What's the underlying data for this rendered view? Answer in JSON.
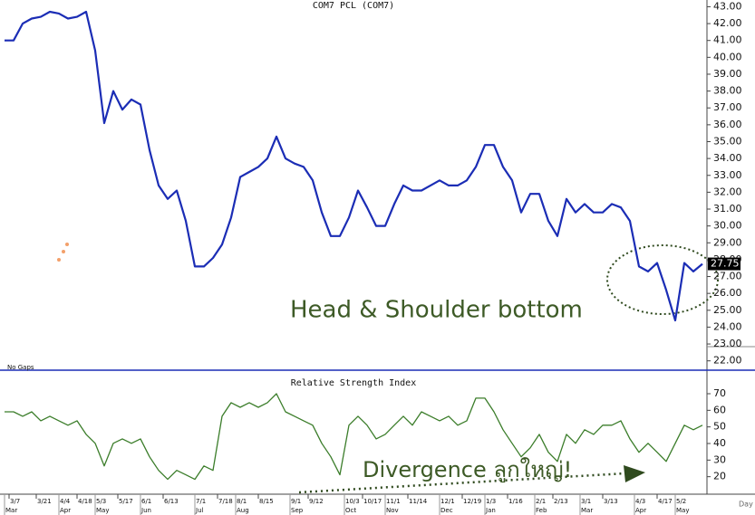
{
  "chart_data": [
    {
      "type": "line",
      "title": "COM7 PCL (COM7)",
      "note": "No Gaps",
      "annotation": "Head & Shoulder bottom",
      "xlim": [
        -0.5,
        77.5
      ],
      "ylim": [
        21.5,
        43.4
      ],
      "yticks": [
        {
          "value": 22,
          "label": "22.00"
        },
        {
          "value": 23,
          "label": "23.00"
        },
        {
          "value": 24,
          "label": "24.00"
        },
        {
          "value": 25,
          "label": "25.00"
        },
        {
          "value": 26,
          "label": "26.00"
        },
        {
          "value": 27,
          "label": "27.00"
        },
        {
          "value": 28,
          "label": "28.00"
        },
        {
          "value": 29,
          "label": "29.00"
        },
        {
          "value": 30,
          "label": "30.00"
        },
        {
          "value": 31,
          "label": "31.00"
        },
        {
          "value": 32,
          "label": "32.00"
        },
        {
          "value": 33,
          "label": "33.00"
        },
        {
          "value": 34,
          "label": "34.00"
        },
        {
          "value": 35,
          "label": "35.00"
        },
        {
          "value": 36,
          "label": "36.00"
        },
        {
          "value": 37,
          "label": "37.00"
        },
        {
          "value": 38,
          "label": "38.00"
        },
        {
          "value": 39,
          "label": "39.00"
        },
        {
          "value": 40,
          "label": "40.00"
        },
        {
          "value": 41,
          "label": "41.00"
        },
        {
          "value": 42,
          "label": "42.00"
        },
        {
          "value": 43,
          "label": "43.00"
        }
      ],
      "series": [
        {
          "color": "#1b2db5",
          "values": [
            41.0,
            41.0,
            42.0,
            42.3,
            42.4,
            42.7,
            42.6,
            42.3,
            42.4,
            42.7,
            40.4,
            36.1,
            38.0,
            36.9,
            37.5,
            37.2,
            34.5,
            32.4,
            31.6,
            32.1,
            30.3,
            27.6,
            27.6,
            28.1,
            28.9,
            30.5,
            32.9,
            33.2,
            33.5,
            34.0,
            35.3,
            34.0,
            33.7,
            33.5,
            32.7,
            30.8,
            29.4,
            29.4,
            30.5,
            32.1,
            31.1,
            30.0,
            30.0,
            31.3,
            32.4,
            32.1,
            32.1,
            32.4,
            32.7,
            32.4,
            32.4,
            32.7,
            33.5,
            34.8,
            34.8,
            33.5,
            32.7,
            30.8,
            31.9,
            31.9,
            30.3,
            29.4,
            31.6,
            30.8,
            31.3,
            30.8,
            30.8,
            31.3,
            31.1,
            30.3,
            27.6,
            27.3,
            27.8,
            26.2,
            24.4,
            27.8,
            27.3,
            27.75
          ]
        }
      ]
    },
    {
      "type": "line",
      "title": "Relative Strength Index",
      "x_unit": "Day",
      "annotation": "Divergence ลูกใหญ่!",
      "xlim": [
        -0.5,
        77.5
      ],
      "ylim": [
        10,
        82
      ],
      "yticks": [
        20,
        30,
        40,
        50,
        60,
        70
      ],
      "xticks": [
        {
          "value": 0.5,
          "label": "3/7"
        },
        {
          "value": 3.5,
          "label": "3/21"
        },
        {
          "value": 6,
          "label": "4/4"
        },
        {
          "value": 8,
          "label": "4/18"
        },
        {
          "value": 10,
          "label": "5/3"
        },
        {
          "value": 12.5,
          "label": "5/17"
        },
        {
          "value": 15,
          "label": "6/1"
        },
        {
          "value": 17.5,
          "label": "6/13"
        },
        {
          "value": 21,
          "label": "7/1"
        },
        {
          "value": 23.5,
          "label": "7/18"
        },
        {
          "value": 25.5,
          "label": "8/1"
        },
        {
          "value": 28,
          "label": "8/15"
        },
        {
          "value": 31.5,
          "label": "9/1"
        },
        {
          "value": 33.5,
          "label": "9/12"
        },
        {
          "value": 37.5,
          "label": "10/3"
        },
        {
          "value": 39.5,
          "label": "10/17"
        },
        {
          "value": 42,
          "label": "11/1"
        },
        {
          "value": 44.5,
          "label": "11/14"
        },
        {
          "value": 48,
          "label": "12/1"
        },
        {
          "value": 50.5,
          "label": "12/19"
        },
        {
          "value": 53,
          "label": "1/3"
        },
        {
          "value": 55.5,
          "label": "1/16"
        },
        {
          "value": 58.5,
          "label": "2/1"
        },
        {
          "value": 60.5,
          "label": "2/13"
        },
        {
          "value": 63.5,
          "label": "3/1"
        },
        {
          "value": 66,
          "label": "3/13"
        },
        {
          "value": 69.5,
          "label": "4/3"
        },
        {
          "value": 72,
          "label": "4/17"
        },
        {
          "value": 74,
          "label": "5/2"
        }
      ],
      "month_ticks": [
        {
          "value": 0,
          "label": "Mar"
        },
        {
          "value": 6,
          "label": "Apr"
        },
        {
          "value": 10,
          "label": "May"
        },
        {
          "value": 15,
          "label": "Jun"
        },
        {
          "value": 21,
          "label": "Jul"
        },
        {
          "value": 25.5,
          "label": "Aug"
        },
        {
          "value": 31.5,
          "label": "Sep"
        },
        {
          "value": 37.5,
          "label": "Oct"
        },
        {
          "value": 42,
          "label": "Nov"
        },
        {
          "value": 48,
          "label": "Dec"
        },
        {
          "value": 53,
          "label": "Jan"
        },
        {
          "value": 58.5,
          "label": "Feb"
        },
        {
          "value": 63.5,
          "label": "Mar"
        },
        {
          "value": 69.5,
          "label": "Apr"
        },
        {
          "value": 74,
          "label": "May"
        }
      ],
      "series": [
        {
          "color": "#3b7d2a",
          "values": [
            59.1,
            59.1,
            56.4,
            59.1,
            53.7,
            56.4,
            53.7,
            51.0,
            53.7,
            45.5,
            40.1,
            26.5,
            40.1,
            42.8,
            40.1,
            42.8,
            32.0,
            23.8,
            18.4,
            23.8,
            21.1,
            18.4,
            26.5,
            23.8,
            56.4,
            64.6,
            61.8,
            64.6,
            61.8,
            64.6,
            70.0,
            59.1,
            56.4,
            53.7,
            51.0,
            40.1,
            32.0,
            21.1,
            51.0,
            56.4,
            51.0,
            42.8,
            45.5,
            51.0,
            56.4,
            51.0,
            59.1,
            56.4,
            53.7,
            56.4,
            51.0,
            53.7,
            67.3,
            67.3,
            59.1,
            48.3,
            40.1,
            32.0,
            37.4,
            45.5,
            34.7,
            29.2,
            45.5,
            40.1,
            48.3,
            45.5,
            51.0,
            51.0,
            53.7,
            42.8,
            34.7,
            40.1,
            34.7,
            29.2,
            40.1,
            51.0,
            48.3,
            51.0
          ]
        }
      ]
    }
  ]
}
